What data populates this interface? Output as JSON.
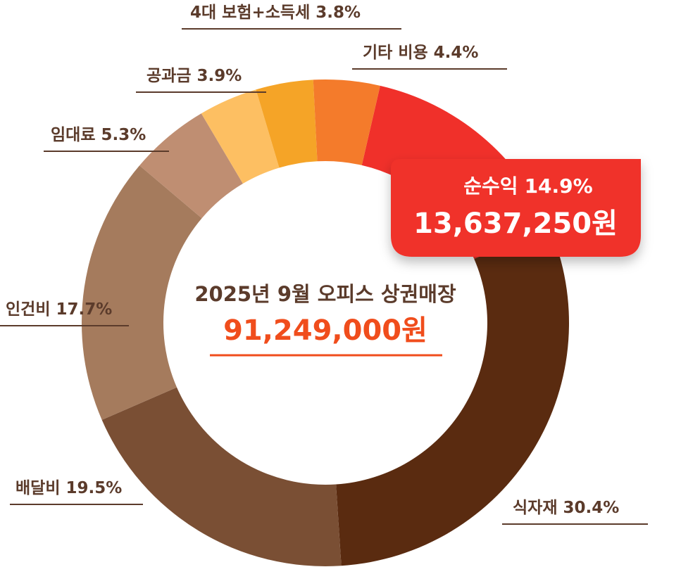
{
  "chart_data": {
    "type": "donut",
    "title": "2025년 9월 오피스 상권매장",
    "annotations": [
      "91,249,000원",
      "13,637,250원"
    ],
    "categories": [
      "순수익",
      "식자재",
      "배달비",
      "인건비",
      "임대료",
      "공과금",
      "4대 보험+소득세",
      "기타 비용"
    ],
    "values": [
      14.9,
      30.4,
      19.5,
      17.7,
      5.3,
      3.9,
      3.8,
      4.4
    ],
    "value_labels": [
      "14.9%",
      "30.4%",
      "19.5%",
      "17.7%",
      "5.3%",
      "3.9%",
      "3.8%",
      "4.4%"
    ],
    "colors": [
      "#f0302a",
      "#5a2b10",
      "#7a4f34",
      "#a57b5d",
      "#bf8e72",
      "#fdbf62",
      "#f5a427",
      "#f47b2b"
    ]
  }
}
